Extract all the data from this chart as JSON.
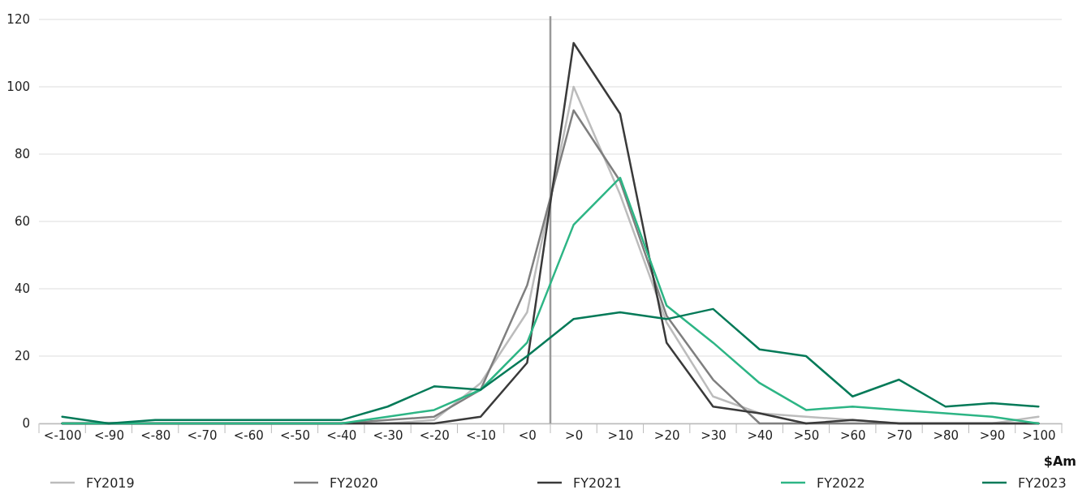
{
  "chart_data": {
    "type": "line",
    "xlabel": "$Am",
    "categories": [
      "<-100",
      "<-90",
      "<-80",
      "<-70",
      "<-60",
      "<-50",
      "<-40",
      "<-30",
      "<-20",
      "<-10",
      "<0",
      ">0",
      ">10",
      ">20",
      ">30",
      ">40",
      ">50",
      ">60",
      ">70",
      ">80",
      ">90",
      ">100"
    ],
    "series": [
      {
        "name": "FY2019",
        "color": "#bcbcbc",
        "values": [
          0,
          0,
          0,
          0,
          0,
          0,
          0,
          0,
          1,
          12,
          33,
          100,
          68,
          30,
          8,
          3,
          2,
          1,
          0,
          0,
          0,
          2
        ]
      },
      {
        "name": "FY2020",
        "color": "#7f7f7f",
        "values": [
          0,
          0,
          0,
          0,
          0,
          0,
          0,
          1,
          2,
          10,
          41,
          93,
          72,
          32,
          13,
          0,
          0,
          0,
          0,
          0,
          0,
          0
        ]
      },
      {
        "name": "FY2021",
        "color": "#3a3a3a",
        "values": [
          0,
          0,
          0,
          0,
          0,
          0,
          0,
          0,
          0,
          2,
          18,
          113,
          92,
          24,
          5,
          3,
          0,
          1,
          0,
          0,
          0,
          0
        ]
      },
      {
        "name": "FY2022",
        "color": "#2db585",
        "values": [
          0,
          0,
          0,
          0,
          0,
          0,
          0,
          2,
          4,
          10,
          24,
          59,
          73,
          35,
          24,
          12,
          4,
          5,
          4,
          3,
          2,
          0
        ]
      },
      {
        "name": "FY2023",
        "color": "#047a58",
        "values": [
          2,
          0,
          1,
          1,
          1,
          1,
          1,
          5,
          11,
          10,
          20,
          31,
          33,
          31,
          34,
          22,
          20,
          8,
          13,
          5,
          6,
          5
        ]
      }
    ],
    "ylim": [
      0,
      120
    ],
    "yticks": [
      0,
      20,
      40,
      60,
      80,
      100,
      120
    ],
    "grid": "y",
    "legend": "bottom",
    "line_style": "solid",
    "marker": "none",
    "ref_lines": [
      {
        "axis": "x",
        "value": "<0",
        "color": "#999999"
      }
    ]
  }
}
